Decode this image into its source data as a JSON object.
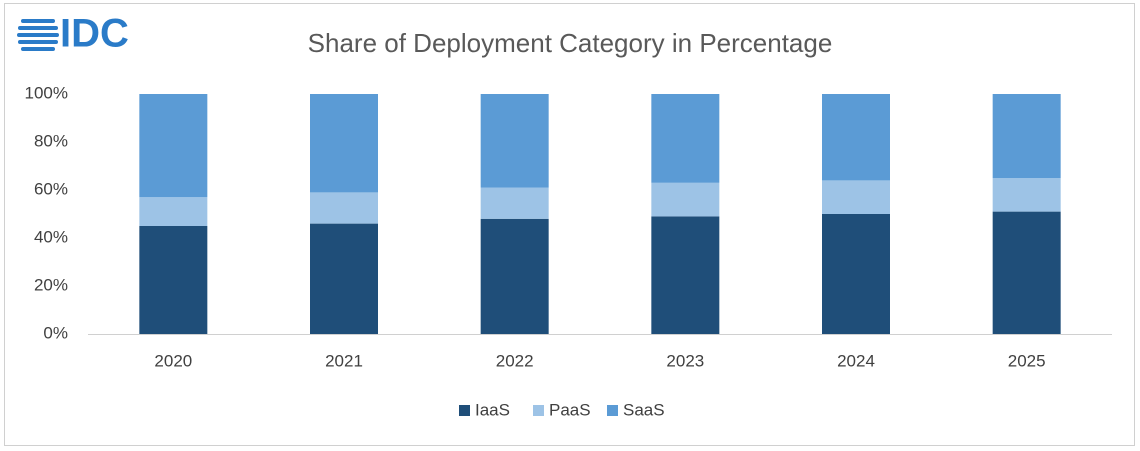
{
  "logo": "IDC",
  "chart_data": {
    "type": "stacked-bar",
    "title": "Share of Deployment Category in Percentage",
    "categories": [
      "2020",
      "2021",
      "2022",
      "2023",
      "2024",
      "2025"
    ],
    "series": [
      {
        "name": "IaaS",
        "color": "#1f4e79",
        "values": [
          45,
          46,
          48,
          49,
          50,
          51
        ]
      },
      {
        "name": "PaaS",
        "color": "#9dc3e6",
        "values": [
          12,
          13,
          13,
          14,
          14,
          14
        ]
      },
      {
        "name": "SaaS",
        "color": "#5b9bd5",
        "values": [
          43,
          41,
          39,
          37,
          36,
          35
        ]
      }
    ],
    "ylim": [
      0,
      100
    ],
    "yticks": [
      {
        "value": 0,
        "label": "0%"
      },
      {
        "value": 20,
        "label": "20%"
      },
      {
        "value": 40,
        "label": "40%"
      },
      {
        "value": 60,
        "label": "60%"
      },
      {
        "value": 80,
        "label": "80%"
      },
      {
        "value": 100,
        "label": "100%"
      }
    ],
    "grid": false,
    "legend": "bottom"
  }
}
